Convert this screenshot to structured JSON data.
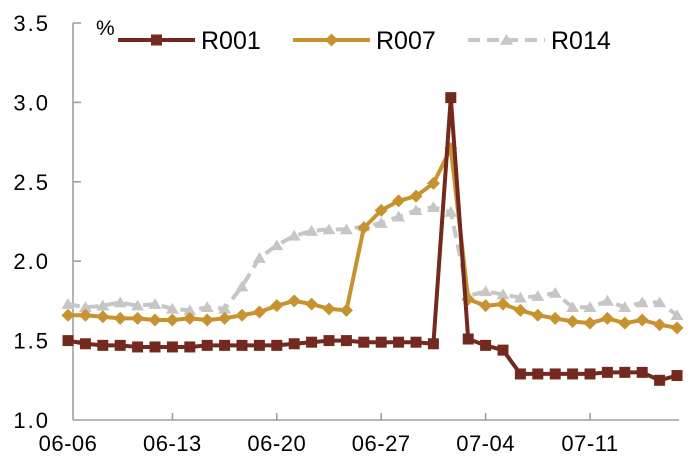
{
  "chart_data": {
    "type": "line",
    "title": "",
    "unit_label": "%",
    "legend_position": "top",
    "grid": false,
    "ylim": [
      1.0,
      3.5
    ],
    "y_tick_labels": [
      "1.0",
      "1.5",
      "2.0",
      "2.5",
      "3.0",
      "3.5"
    ],
    "x_tick_labels": [
      "06-06",
      "06-13",
      "06-20",
      "06-27",
      "07-04",
      "07-11"
    ],
    "x_tick_interval": 6,
    "n_points": 36,
    "axis_color": "#A0A0A0",
    "text_color": "#000000",
    "series": [
      {
        "name": "R001",
        "color": "#74291F",
        "marker": "square",
        "line_style": "solid",
        "values": [
          1.5,
          1.48,
          1.47,
          1.47,
          1.46,
          1.46,
          1.46,
          1.46,
          1.47,
          1.47,
          1.47,
          1.47,
          1.47,
          1.48,
          1.49,
          1.5,
          1.5,
          1.49,
          1.49,
          1.49,
          1.49,
          1.48,
          3.03,
          1.51,
          1.47,
          1.44,
          1.29,
          1.29,
          1.29,
          1.29,
          1.29,
          1.3,
          1.3,
          1.3,
          1.25,
          1.28
        ]
      },
      {
        "name": "R007",
        "color": "#C8922F",
        "marker": "diamond",
        "line_style": "solid",
        "values": [
          1.66,
          1.66,
          1.65,
          1.64,
          1.64,
          1.63,
          1.63,
          1.64,
          1.63,
          1.64,
          1.66,
          1.68,
          1.72,
          1.75,
          1.73,
          1.7,
          1.69,
          2.21,
          2.32,
          2.38,
          2.41,
          2.49,
          2.71,
          1.76,
          1.72,
          1.73,
          1.69,
          1.66,
          1.64,
          1.62,
          1.61,
          1.64,
          1.61,
          1.63,
          1.6,
          1.58
        ]
      },
      {
        "name": "R014",
        "color": "#C6C6C6",
        "marker": "triangle",
        "line_style": "dashed",
        "values": [
          1.73,
          1.71,
          1.72,
          1.74,
          1.72,
          1.73,
          1.7,
          1.69,
          1.71,
          1.7,
          1.84,
          2.02,
          2.1,
          2.16,
          2.19,
          2.2,
          2.2,
          2.22,
          2.24,
          2.28,
          2.32,
          2.34,
          2.31,
          1.78,
          1.81,
          1.79,
          1.77,
          1.78,
          1.8,
          1.71,
          1.71,
          1.75,
          1.71,
          1.74,
          1.74,
          1.66
        ]
      }
    ]
  }
}
